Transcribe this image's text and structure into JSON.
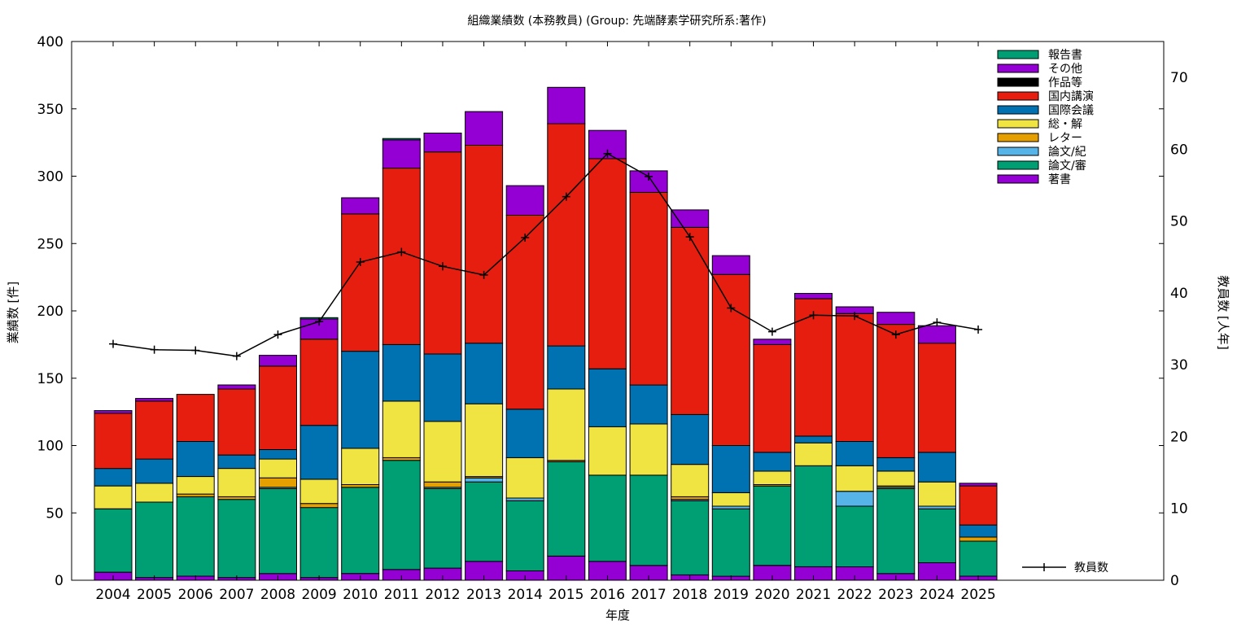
{
  "chart_data": {
    "type": "bar",
    "stacked": true,
    "title": "組織業績数 (本務教員) (Group: 先端酵素学研究所系:著作)",
    "xlabel": "年度",
    "ylabel": "業績数 [件]",
    "y2label": "教員数 [人年]",
    "ylim": [
      0,
      400
    ],
    "y2lim": [
      0,
      75
    ],
    "yticks": [
      "0",
      "50",
      "100",
      "150",
      "200",
      "250",
      "300",
      "350",
      "400"
    ],
    "y2ticks": [
      "0",
      "10",
      "20",
      "30",
      "40",
      "50",
      "60",
      "70"
    ],
    "legend_position": "top-right",
    "categories": [
      "2004",
      "2005",
      "2006",
      "2007",
      "2008",
      "2009",
      "2010",
      "2011",
      "2012",
      "2013",
      "2014",
      "2015",
      "2016",
      "2017",
      "2018",
      "2019",
      "2020",
      "2021",
      "2022",
      "2023",
      "2024",
      "2025"
    ],
    "series": [
      {
        "name": "著書",
        "color": "#9400d3",
        "values": [
          6,
          2,
          3,
          2,
          5,
          2,
          5,
          8,
          9,
          14,
          7,
          18,
          14,
          11,
          4,
          3,
          11,
          10,
          10,
          5,
          13,
          3
        ]
      },
      {
        "name": "論文/審",
        "color": "#009e73",
        "values": [
          47,
          56,
          59,
          58,
          63,
          52,
          64,
          81,
          59,
          59,
          52,
          70,
          64,
          67,
          55,
          50,
          59,
          75,
          45,
          63,
          40,
          26
        ]
      },
      {
        "name": "論文/紀",
        "color": "#56b4e9",
        "values": [
          0,
          0,
          0,
          0,
          1,
          0,
          0,
          0,
          1,
          3,
          2,
          0,
          0,
          0,
          1,
          2,
          0,
          0,
          11,
          1,
          2,
          0
        ]
      },
      {
        "name": "レター",
        "color": "#e69f00",
        "values": [
          0,
          0,
          2,
          2,
          7,
          3,
          2,
          2,
          4,
          1,
          0,
          1,
          0,
          0,
          2,
          0,
          1,
          0,
          0,
          1,
          0,
          3
        ]
      },
      {
        "name": "総・解",
        "color": "#f0e442",
        "values": [
          17,
          14,
          13,
          21,
          14,
          18,
          27,
          42,
          45,
          54,
          30,
          53,
          36,
          38,
          24,
          10,
          10,
          17,
          19,
          11,
          18,
          0
        ]
      },
      {
        "name": "国際会議",
        "color": "#0072b2",
        "values": [
          13,
          18,
          26,
          10,
          7,
          40,
          72,
          42,
          50,
          45,
          36,
          32,
          43,
          29,
          37,
          35,
          14,
          5,
          18,
          10,
          22,
          9
        ]
      },
      {
        "name": "国内講演",
        "color": "#e51e10",
        "values": [
          41,
          43,
          35,
          49,
          62,
          64,
          102,
          131,
          150,
          147,
          144,
          165,
          156,
          143,
          139,
          127,
          80,
          102,
          95,
          99,
          81,
          29
        ]
      },
      {
        "name": "作品等",
        "color": "#000000",
        "values": [
          0,
          0,
          0,
          0,
          0,
          0,
          0,
          0,
          0,
          0,
          0,
          0,
          0,
          0,
          0,
          0,
          0,
          0,
          0,
          0,
          0,
          0
        ]
      },
      {
        "name": "その他",
        "color": "#9400d3",
        "values": [
          2,
          2,
          0,
          3,
          8,
          15,
          12,
          21,
          14,
          25,
          22,
          27,
          21,
          16,
          13,
          14,
          4,
          4,
          5,
          9,
          13,
          2
        ]
      },
      {
        "name": "報告書",
        "color": "#009e73",
        "values": [
          0,
          0,
          0,
          0,
          0,
          1,
          0,
          1,
          0,
          0,
          0,
          0,
          0,
          0,
          0,
          0,
          0,
          0,
          0,
          0,
          0,
          0
        ]
      }
    ],
    "line_series": {
      "name": "教員数",
      "axis": "y2",
      "color": "#000000",
      "values": [
        32.9,
        32.1,
        32.0,
        31.2,
        34.2,
        36.0,
        44.3,
        45.7,
        43.7,
        42.5,
        47.7,
        53.4,
        59.4,
        56.2,
        47.8,
        37.9,
        34.6,
        36.9,
        36.8,
        34.2,
        35.9,
        34.9
      ]
    }
  }
}
